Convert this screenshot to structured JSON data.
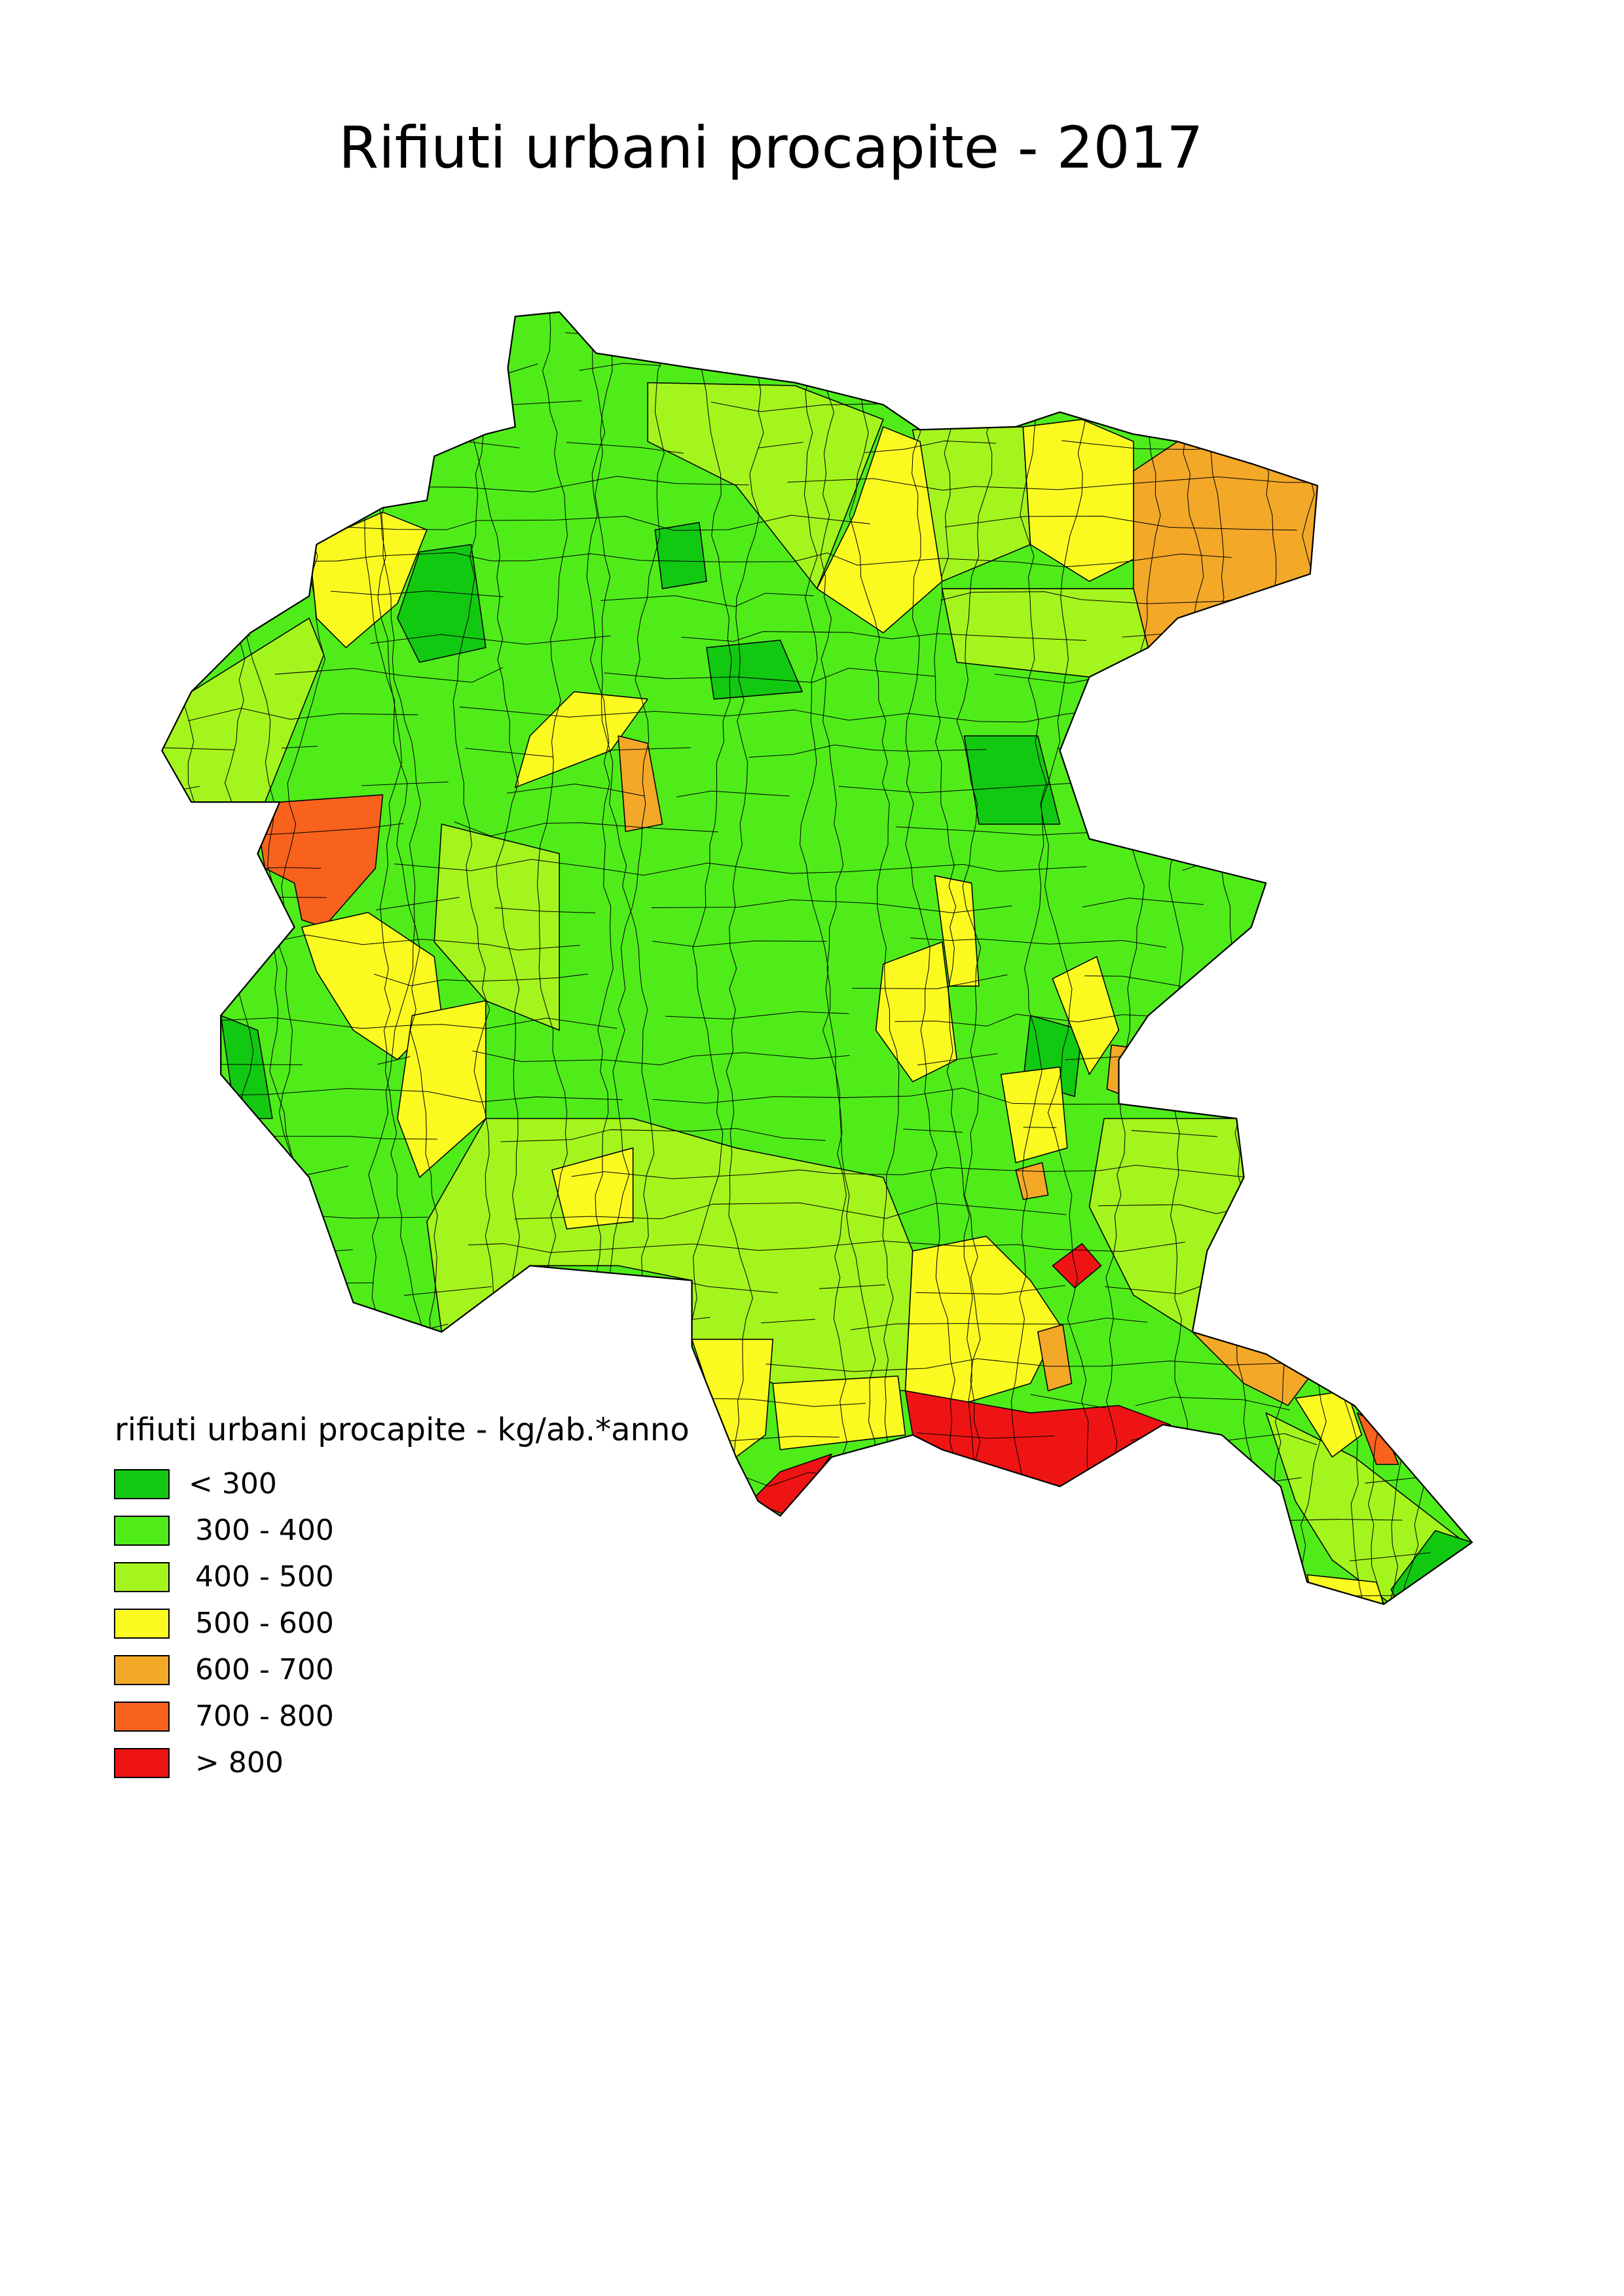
{
  "title": "Rifiuti urbani procapite - 2017",
  "legend": {
    "title": "rifiuti urbani procapite - kg/ab.*anno",
    "items": [
      {
        "label": "< 300",
        "color": "#12c912"
      },
      {
        "label": "300 - 400",
        "color": "#4fec1a"
      },
      {
        "label": "400 - 500",
        "color": "#a4f41d"
      },
      {
        "label": "500 - 600",
        "color": "#fafa20"
      },
      {
        "label": "600 - 700",
        "color": "#f3a828"
      },
      {
        "label": "700 - 800",
        "color": "#f8621c"
      },
      {
        "label": "> 800",
        "color": "#ee1414"
      }
    ]
  }
}
